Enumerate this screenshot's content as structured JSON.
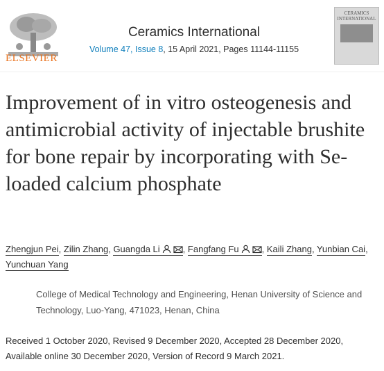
{
  "header": {
    "publisher": "ELSEVIER",
    "journal": "Ceramics International",
    "volume_issue": "Volume 47, Issue 8",
    "details": ", 15 April 2021, Pages 11144-11155",
    "cover_title": "CERAMICS INTERNATIONAL"
  },
  "article": {
    "title": "Improvement of in vitro osteogenesis and antimicrobial activity of injectable brushite for bone repair by incorporating with Se-loaded calcium phosphate",
    "authors": [
      "Zhengjun Pei",
      "Zilin Zhang",
      "Guangda Li",
      "Fangfang Fu",
      "Kaili Zhang",
      "Yunbian Cai",
      "Yunchuan Yang"
    ],
    "separator": ",",
    "affiliation": "College of Medical Technology and Engineering, Henan University of Science and Technology, Luo-Yang, 471023, Henan, China",
    "history": "Received 1 October 2020, Revised 9 December 2020, Accepted 28 December 2020, Available online 30 December 2020, Version of Record 9 March 2021."
  }
}
